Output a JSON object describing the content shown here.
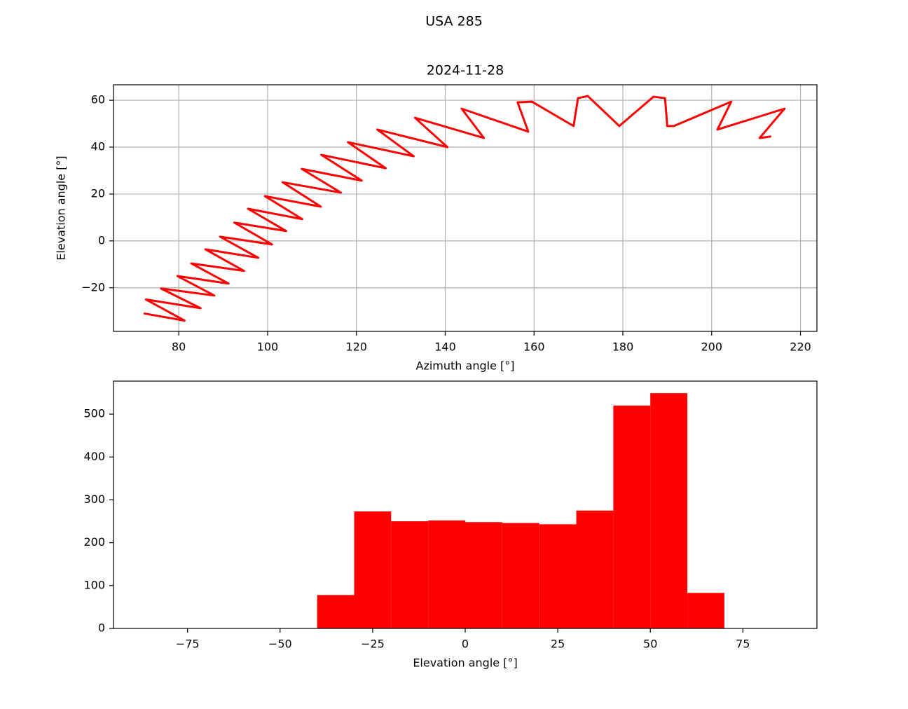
{
  "title": "USA 285",
  "chart_data": [
    {
      "type": "line",
      "title": "2024-11-28",
      "xlabel": "Azimuth angle [°]",
      "ylabel": "Elevation angle [°]",
      "color": "#ff0000",
      "grid": true,
      "x": [
        72.3,
        81.3,
        72.6,
        84.9,
        76.0,
        88.0,
        79.7,
        91.2,
        82.8,
        94.7,
        86.0,
        97.9,
        89.3,
        101.0,
        92.5,
        104.2,
        95.6,
        107.8,
        99.4,
        112.0,
        103.4,
        116.5,
        107.7,
        121.2,
        112.1,
        126.6,
        118.1,
        132.9,
        124.7,
        140.5,
        133.2,
        148.7,
        143.7,
        158.7,
        156.3,
        159.5,
        168.9,
        169.9,
        172.1,
        179.2,
        186.9,
        189.5,
        190.0,
        191.5,
        204.4,
        201.3,
        216.4,
        210.8,
        213.2
      ],
      "y": [
        -31,
        -34,
        -25,
        -28.7,
        -20.3,
        -23.3,
        -15,
        -18.2,
        -9.6,
        -12.8,
        -3.6,
        -7.2,
        1.8,
        -1.5,
        7.8,
        4.2,
        13.7,
        9.3,
        19.1,
        14.6,
        25,
        20.6,
        30.7,
        25.7,
        36.7,
        31.0,
        42.1,
        36.1,
        47.5,
        40,
        52.5,
        43.9,
        56.4,
        46.6,
        59.1,
        59.4,
        49,
        60.9,
        61.8,
        49,
        61.5,
        60.9,
        49,
        49,
        59.4,
        47.5,
        56.4,
        43.9,
        44.5
      ],
      "xlim": [
        65.3,
        223.7
      ],
      "ylim": [
        -38.6,
        66.6
      ],
      "xticks": [
        80,
        100,
        120,
        140,
        160,
        180,
        200,
        220
      ],
      "yticks": [
        {
          "value": -20,
          "label": "−20"
        },
        0,
        20,
        40,
        60
      ]
    },
    {
      "type": "histogram",
      "xlabel": "Elevation angle [°]",
      "color": "#ff0000",
      "grid": false,
      "bins": [
        -90,
        -80,
        -70,
        -60,
        -50,
        -40,
        -30,
        -20,
        -10,
        0,
        10,
        20,
        30,
        40,
        50,
        60,
        70,
        80,
        90
      ],
      "values": [
        0,
        0,
        0,
        0,
        0,
        78,
        273,
        250,
        252,
        248,
        246,
        243,
        275,
        520,
        549,
        83,
        0,
        0
      ],
      "xlim": [
        -95,
        95
      ],
      "ylim": [
        0,
        577
      ],
      "xticks": [
        {
          "value": -75,
          "label": "−75"
        },
        {
          "value": -50,
          "label": "−50"
        },
        {
          "value": -25,
          "label": "−25"
        },
        0,
        25,
        50,
        75
      ],
      "yticks": [
        0,
        100,
        200,
        300,
        400,
        500
      ]
    }
  ]
}
